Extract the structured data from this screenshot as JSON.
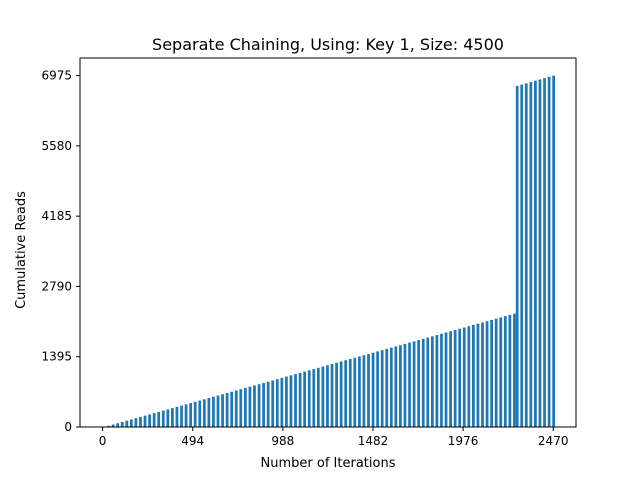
{
  "chart_data": {
    "type": "bar",
    "title": "Separate Chaining, Using: Key 1, Size: 4500",
    "xlabel": "Number of Iterations",
    "ylabel": "Cumulative Reads",
    "xlim": [
      -124,
      2595
    ],
    "ylim": [
      0,
      7324
    ],
    "xticks": [
      0,
      494,
      988,
      1482,
      1976,
      2470
    ],
    "xtick_labels": [
      "0",
      "494",
      "988",
      "1482",
      "1976",
      "2470"
    ],
    "yticks": [
      0,
      1395,
      2790,
      4185,
      5580,
      6975
    ],
    "ytick_labels": [
      "0",
      "1395",
      "2790",
      "4185",
      "5580",
      "6975"
    ],
    "bar_color": "#1f77b4",
    "bar_width": 15,
    "segments": [
      {
        "x_start": 0,
        "x_end": 2260,
        "y_start": 0,
        "y_end": 2250,
        "step": 25
      },
      {
        "x_start": 2265,
        "x_end": 2470,
        "y_start": 6770,
        "y_end": 6975,
        "step": 25
      }
    ],
    "grid": false
  }
}
